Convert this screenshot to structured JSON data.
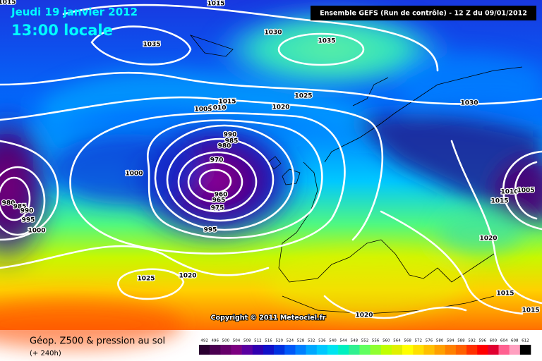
{
  "header": {
    "date": "Jeudi 19 janvier 2012",
    "time": "13:00 locale",
    "run": "Ensemble GEFS (Run de contrôle)  -  12 Z du 09/01/2012"
  },
  "copyright": "Copyright © 2011 Meteociel.fr",
  "footer": {
    "title": "Géop. Z500 & pression au sol",
    "subtitle": "(+ 240h)"
  },
  "isobar_labels": [
    "1015",
    "1015",
    "1035",
    "1030",
    "1035",
    "1025",
    "1020",
    "1015",
    "1010",
    "1005",
    "1030",
    "990",
    "985",
    "980",
    "970",
    "960",
    "965",
    "975",
    "1000",
    "995",
    "980",
    "985",
    "990",
    "995",
    "1000",
    "1025",
    "1020",
    "1020",
    "1015",
    "1015",
    "1020",
    "1010",
    "1005",
    "1015"
  ],
  "colorbar": {
    "labels": [
      492,
      496,
      500,
      504,
      508,
      512,
      516,
      520,
      524,
      528,
      532,
      536,
      540,
      544,
      548,
      552,
      556,
      560,
      564,
      568,
      572,
      576,
      580,
      584,
      588,
      592,
      596,
      600,
      604,
      608,
      612
    ],
    "colors": [
      "#2a0030",
      "#4a0050",
      "#66006a",
      "#7c0080",
      "#5a00a0",
      "#3000b0",
      "#1010c8",
      "#0030e0",
      "#0058f8",
      "#0080ff",
      "#00a8ff",
      "#00c8ff",
      "#00e4f0",
      "#00f0c0",
      "#30f090",
      "#60ff60",
      "#90ff30",
      "#c0ff00",
      "#e0f000",
      "#ffff00",
      "#ffe000",
      "#ffc000",
      "#ffa000",
      "#ff8000",
      "#ff6000",
      "#ff3000",
      "#ff0000",
      "#e00030",
      "#ff6090",
      "#ffa0c0",
      "#000000"
    ]
  }
}
